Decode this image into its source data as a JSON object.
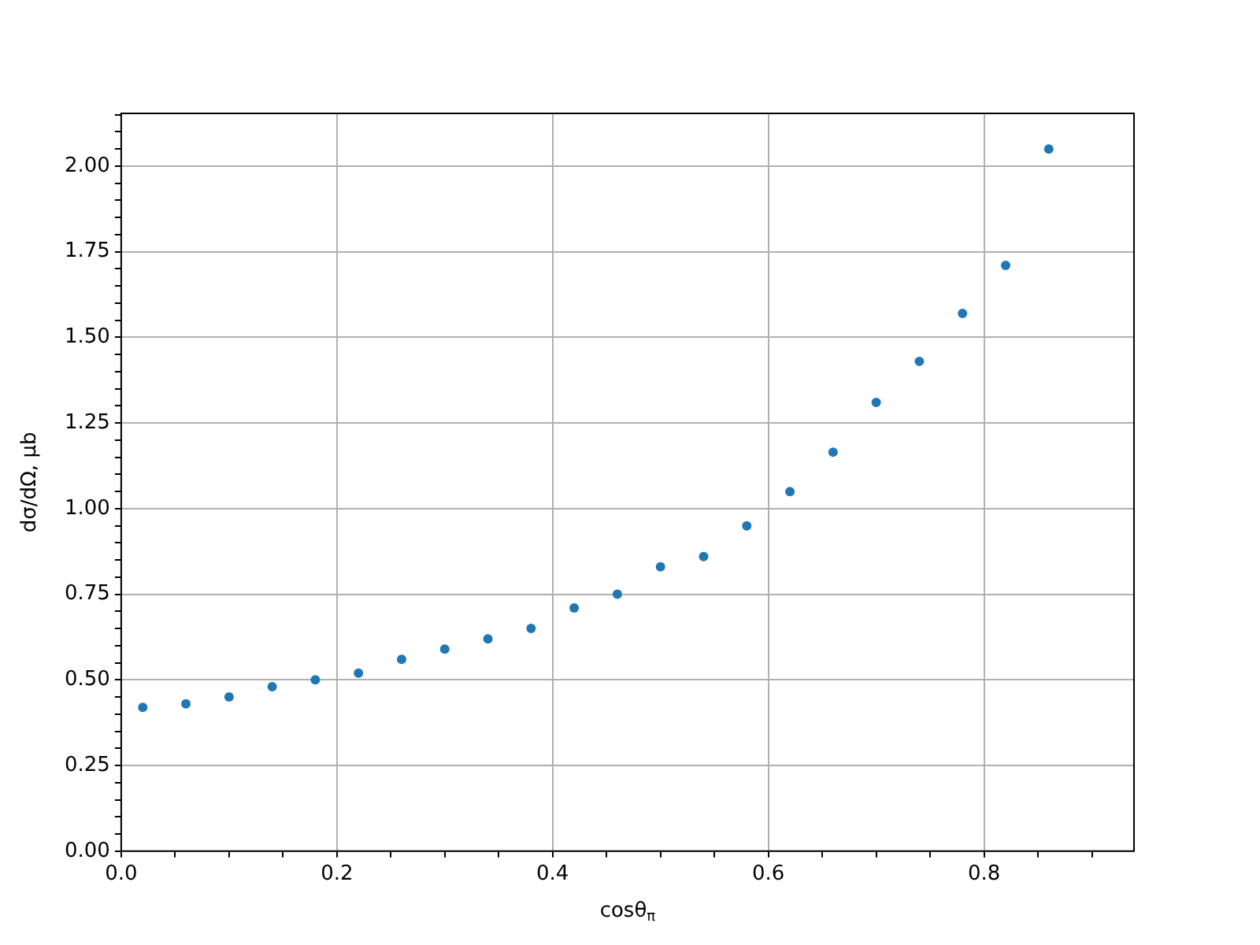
{
  "chart_data": {
    "type": "scatter",
    "xlabel": "cosθ$_{π}$",
    "ylabel": "dσ/dΩ, μb",
    "x": [
      0.02,
      0.06,
      0.1,
      0.14,
      0.18,
      0.22,
      0.26,
      0.3,
      0.34,
      0.38,
      0.42,
      0.46,
      0.5,
      0.54,
      0.58,
      0.62,
      0.66,
      0.7,
      0.74,
      0.78,
      0.82,
      0.86
    ],
    "series": [
      {
        "color": "#1f77b4",
        "values": [
          0.42,
          0.43,
          0.45,
          0.48,
          0.5,
          0.52,
          0.56,
          0.59,
          0.62,
          0.65,
          0.71,
          0.75,
          0.83,
          0.86,
          0.95,
          1.05,
          1.165,
          1.31,
          1.43,
          1.57,
          1.71,
          2.05
        ]
      }
    ],
    "xlim": [
      0,
      0.939
    ],
    "ylim": [
      0,
      2.154
    ],
    "xticks": [
      {
        "value": 0,
        "label": "0.0"
      },
      {
        "value": 0.05,
        "label": null
      },
      {
        "value": 0.1,
        "label": null
      },
      {
        "value": 0.15,
        "label": null
      },
      {
        "value": 0.2,
        "label": "0.2"
      },
      {
        "value": 0.25,
        "label": null
      },
      {
        "value": 0.3,
        "label": null
      },
      {
        "value": 0.35,
        "label": null
      },
      {
        "value": 0.4,
        "label": "0.4"
      },
      {
        "value": 0.45,
        "label": null
      },
      {
        "value": 0.5,
        "label": null
      },
      {
        "value": 0.55,
        "label": null
      },
      {
        "value": 0.6,
        "label": "0.6"
      },
      {
        "value": 0.65,
        "label": null
      },
      {
        "value": 0.7,
        "label": null
      },
      {
        "value": 0.75,
        "label": null
      },
      {
        "value": 0.8,
        "label": "0.8"
      },
      {
        "value": 0.85,
        "label": null
      },
      {
        "value": 0.9,
        "label": null
      }
    ],
    "yticks": [
      {
        "value": 0,
        "label": "0.00"
      },
      {
        "value": 0.05,
        "label": null
      },
      {
        "value": 0.1,
        "label": null
      },
      {
        "value": 0.15,
        "label": null
      },
      {
        "value": 0.2,
        "label": null
      },
      {
        "value": 0.25,
        "label": "0.25"
      },
      {
        "value": 0.3,
        "label": null
      },
      {
        "value": 0.35,
        "label": null
      },
      {
        "value": 0.4,
        "label": null
      },
      {
        "value": 0.45,
        "label": null
      },
      {
        "value": 0.5,
        "label": "0.50"
      },
      {
        "value": 0.55,
        "label": null
      },
      {
        "value": 0.6,
        "label": null
      },
      {
        "value": 0.65,
        "label": null
      },
      {
        "value": 0.7,
        "label": null
      },
      {
        "value": 0.75,
        "label": "0.75"
      },
      {
        "value": 0.8,
        "label": null
      },
      {
        "value": 0.85,
        "label": null
      },
      {
        "value": 0.9,
        "label": null
      },
      {
        "value": 0.95,
        "label": null
      },
      {
        "value": 1.0,
        "label": "1.00"
      },
      {
        "value": 1.05,
        "label": null
      },
      {
        "value": 1.1,
        "label": null
      },
      {
        "value": 1.15,
        "label": null
      },
      {
        "value": 1.2,
        "label": null
      },
      {
        "value": 1.25,
        "label": "1.25"
      },
      {
        "value": 1.3,
        "label": null
      },
      {
        "value": 1.35,
        "label": null
      },
      {
        "value": 1.4,
        "label": null
      },
      {
        "value": 1.45,
        "label": null
      },
      {
        "value": 1.5,
        "label": "1.50"
      },
      {
        "value": 1.55,
        "label": null
      },
      {
        "value": 1.6,
        "label": null
      },
      {
        "value": 1.65,
        "label": null
      },
      {
        "value": 1.7,
        "label": null
      },
      {
        "value": 1.75,
        "label": "1.75"
      },
      {
        "value": 1.8,
        "label": null
      },
      {
        "value": 1.85,
        "label": null
      },
      {
        "value": 1.9,
        "label": null
      },
      {
        "value": 1.95,
        "label": null
      },
      {
        "value": 2.0,
        "label": "2.00"
      },
      {
        "value": 2.05,
        "label": null
      },
      {
        "value": 2.1,
        "label": null
      },
      {
        "value": 2.15,
        "label": null
      }
    ],
    "grid": true,
    "marker": "circle"
  }
}
